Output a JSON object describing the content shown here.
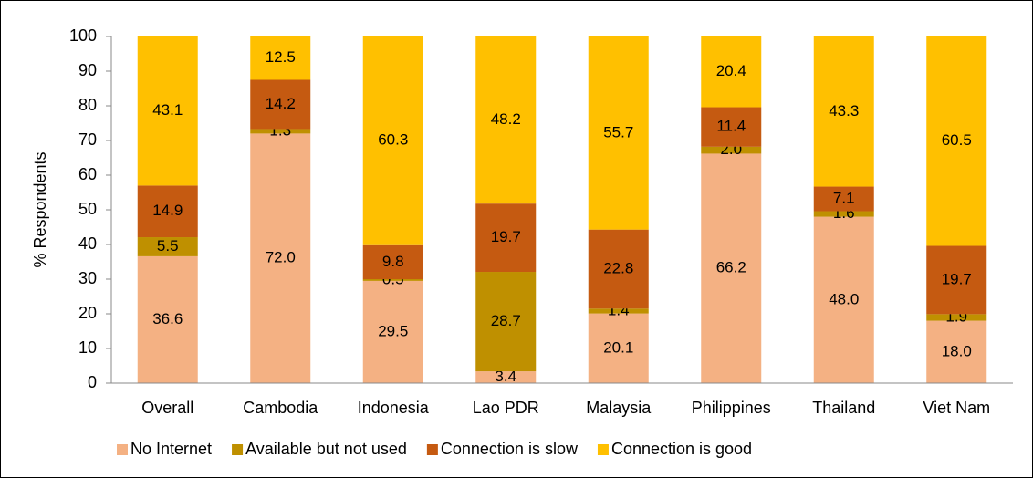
{
  "chart_data": {
    "type": "stacked_bar",
    "y_axis_label": "% Respondents",
    "categories": [
      "Overall",
      "Cambodia",
      "Indonesia",
      "Lao PDR",
      "Malaysia",
      "Philippines",
      "Thailand",
      "Viet Nam"
    ],
    "series": [
      {
        "name": "No Internet",
        "color": "#f4b183",
        "values": [
          36.6,
          72.0,
          29.5,
          3.4,
          20.1,
          66.2,
          48.0,
          18.0
        ],
        "value_labels": [
          "36.6",
          "72.0",
          "29.5",
          "3.4",
          "20.1",
          "66.2",
          "48.0",
          "18.0"
        ]
      },
      {
        "name": "Available but not used",
        "color": "#bf9000",
        "values": [
          5.5,
          1.3,
          0.5,
          28.7,
          1.4,
          2.0,
          1.6,
          1.9
        ],
        "value_labels": [
          "5.5",
          "1.3",
          "0.5",
          "28.7",
          "1.4",
          "2.0",
          "1.6",
          "1.9"
        ]
      },
      {
        "name": "Connection is slow",
        "color": "#c55a11",
        "values": [
          14.9,
          14.2,
          9.8,
          19.7,
          22.8,
          11.4,
          7.1,
          19.7
        ],
        "value_labels": [
          "14.9",
          "14.2",
          "9.8",
          "19.7",
          "22.8",
          "11.4",
          "7.1",
          "19.7"
        ]
      },
      {
        "name": "Connection is good",
        "color": "#ffc000",
        "values": [
          43.1,
          12.5,
          60.3,
          48.2,
          55.7,
          20.4,
          43.3,
          60.5
        ],
        "value_labels": [
          "43.1",
          "12.5",
          "60.3",
          "48.2",
          "55.7",
          "20.4",
          "43.3",
          "60.5"
        ]
      }
    ],
    "ylim": [
      0,
      100
    ],
    "yticks": [
      0,
      10,
      20,
      30,
      40,
      50,
      60,
      70,
      80,
      90,
      100
    ],
    "grid": false,
    "legend": "bottom"
  }
}
